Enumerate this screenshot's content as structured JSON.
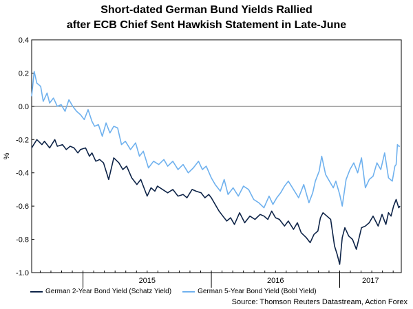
{
  "colors": {
    "schatz": "#0d2347",
    "bobl": "#6fb1ee",
    "zero_line": "#555555",
    "axis": "#000000"
  },
  "chart_data": {
    "type": "line",
    "title_line1": "Short-dated German Bund Yields Rallied",
    "title_line2": "after ECB Chief Sent Hawkish Statement in Late-June",
    "ylabel": "%",
    "xlabel": "",
    "ylim": [
      -1.0,
      0.4
    ],
    "xlim": [
      2014.6,
      2017.48
    ],
    "yticks": [
      "0.4",
      "0.2",
      "0.0",
      "-0.2",
      "-0.4",
      "-0.6",
      "-0.8",
      "-1.0"
    ],
    "ytick_values": [
      0.4,
      0.2,
      0.0,
      -0.2,
      -0.4,
      -0.6,
      -0.8,
      -1.0
    ],
    "xticks": [
      "2015",
      "2016",
      "2017"
    ],
    "xtick_values": [
      2015.0,
      2016.0,
      2017.0
    ],
    "year_boundaries": [
      2015.0,
      2016.0,
      2017.0
    ],
    "series": [
      {
        "name": "German 2-Year Bond Yield (Schatz Yield)",
        "x": [
          2014.6,
          2014.64,
          2014.68,
          2014.7,
          2014.74,
          2014.78,
          2014.8,
          2014.84,
          2014.87,
          2014.9,
          2014.93,
          2014.96,
          2014.98,
          2015.02,
          2015.05,
          2015.07,
          2015.1,
          2015.13,
          2015.16,
          2015.2,
          2015.24,
          2015.28,
          2015.31,
          2015.34,
          2015.38,
          2015.42,
          2015.45,
          2015.5,
          2015.53,
          2015.56,
          2015.58,
          2015.62,
          2015.66,
          2015.7,
          2015.74,
          2015.78,
          2015.81,
          2015.85,
          2015.88,
          2015.92,
          2015.95,
          2015.98,
          2016.0,
          2016.03,
          2016.06,
          2016.09,
          2016.12,
          2016.15,
          2016.18,
          2016.22,
          2016.26,
          2016.3,
          2016.34,
          2016.38,
          2016.41,
          2016.44,
          2016.47,
          2016.5,
          2016.53,
          2016.57,
          2016.6,
          2016.64,
          2016.67,
          2016.7,
          2016.74,
          2016.77,
          2016.8,
          2016.83,
          2016.85,
          2016.87,
          2016.9,
          2016.93,
          2016.96,
          2016.98,
          2017.0,
          2017.02,
          2017.04,
          2017.07,
          2017.1,
          2017.13,
          2017.17,
          2017.2,
          2017.23,
          2017.26,
          2017.3,
          2017.33,
          2017.36,
          2017.38,
          2017.4,
          2017.42,
          2017.44,
          2017.46,
          2017.47
        ],
        "values": [
          -0.25,
          -0.2,
          -0.23,
          -0.21,
          -0.25,
          -0.2,
          -0.24,
          -0.23,
          -0.26,
          -0.24,
          -0.25,
          -0.28,
          -0.26,
          -0.25,
          -0.3,
          -0.28,
          -0.33,
          -0.32,
          -0.34,
          -0.44,
          -0.31,
          -0.34,
          -0.38,
          -0.36,
          -0.43,
          -0.47,
          -0.44,
          -0.54,
          -0.49,
          -0.51,
          -0.48,
          -0.5,
          -0.52,
          -0.5,
          -0.54,
          -0.53,
          -0.55,
          -0.5,
          -0.51,
          -0.52,
          -0.55,
          -0.53,
          -0.55,
          -0.59,
          -0.63,
          -0.66,
          -0.69,
          -0.67,
          -0.71,
          -0.64,
          -0.7,
          -0.66,
          -0.68,
          -0.65,
          -0.66,
          -0.68,
          -0.63,
          -0.67,
          -0.68,
          -0.72,
          -0.69,
          -0.74,
          -0.7,
          -0.76,
          -0.79,
          -0.82,
          -0.77,
          -0.75,
          -0.67,
          -0.64,
          -0.66,
          -0.68,
          -0.84,
          -0.89,
          -0.95,
          -0.79,
          -0.73,
          -0.78,
          -0.8,
          -0.86,
          -0.73,
          -0.72,
          -0.7,
          -0.66,
          -0.72,
          -0.65,
          -0.71,
          -0.64,
          -0.66,
          -0.6,
          -0.56,
          -0.61,
          -0.6
        ]
      },
      {
        "name": "German 5-Year Bond Yield (Bobl Yield)",
        "x": [
          2014.6,
          2014.62,
          2014.64,
          2014.67,
          2014.69,
          2014.72,
          2014.74,
          2014.77,
          2014.8,
          2014.83,
          2014.86,
          2014.89,
          2014.92,
          2014.95,
          2014.98,
          2015.01,
          2015.04,
          2015.07,
          2015.09,
          2015.12,
          2015.15,
          2015.18,
          2015.21,
          2015.24,
          2015.27,
          2015.3,
          2015.33,
          2015.37,
          2015.41,
          2015.44,
          2015.47,
          2015.51,
          2015.55,
          2015.59,
          2015.63,
          2015.66,
          2015.7,
          2015.74,
          2015.78,
          2015.82,
          2015.86,
          2015.9,
          2015.93,
          2015.96,
          2016.0,
          2016.03,
          2016.07,
          2016.1,
          2016.13,
          2016.17,
          2016.21,
          2016.25,
          2016.29,
          2016.33,
          2016.37,
          2016.41,
          2016.45,
          2016.48,
          2016.51,
          2016.54,
          2016.57,
          2016.6,
          2016.64,
          2016.68,
          2016.72,
          2016.76,
          2016.79,
          2016.81,
          2016.84,
          2016.86,
          2016.89,
          2016.92,
          2016.95,
          2016.97,
          2017.0,
          2017.02,
          2017.05,
          2017.08,
          2017.11,
          2017.14,
          2017.17,
          2017.2,
          2017.23,
          2017.26,
          2017.29,
          2017.32,
          2017.35,
          2017.38,
          2017.41,
          2017.43,
          2017.44,
          2017.45,
          2017.46,
          2017.47
        ],
        "values": [
          0.06,
          0.21,
          0.14,
          0.12,
          0.03,
          0.08,
          0.02,
          0.05,
          0.0,
          0.01,
          -0.03,
          0.04,
          0.0,
          -0.03,
          -0.05,
          -0.08,
          -0.02,
          -0.09,
          -0.12,
          -0.11,
          -0.18,
          -0.1,
          -0.16,
          -0.12,
          -0.13,
          -0.23,
          -0.21,
          -0.26,
          -0.22,
          -0.3,
          -0.27,
          -0.37,
          -0.33,
          -0.35,
          -0.32,
          -0.36,
          -0.33,
          -0.38,
          -0.35,
          -0.4,
          -0.37,
          -0.33,
          -0.38,
          -0.36,
          -0.43,
          -0.47,
          -0.51,
          -0.44,
          -0.53,
          -0.49,
          -0.54,
          -0.48,
          -0.5,
          -0.56,
          -0.58,
          -0.61,
          -0.54,
          -0.59,
          -0.55,
          -0.52,
          -0.48,
          -0.45,
          -0.5,
          -0.55,
          -0.47,
          -0.58,
          -0.52,
          -0.45,
          -0.39,
          -0.3,
          -0.41,
          -0.45,
          -0.49,
          -0.45,
          -0.53,
          -0.6,
          -0.44,
          -0.38,
          -0.34,
          -0.4,
          -0.31,
          -0.49,
          -0.44,
          -0.42,
          -0.34,
          -0.38,
          -0.28,
          -0.43,
          -0.45,
          -0.36,
          -0.35,
          -0.23,
          -0.24,
          -0.24
        ]
      }
    ]
  },
  "source": "Source: Thomson Reuters Datastream, Action Forex"
}
